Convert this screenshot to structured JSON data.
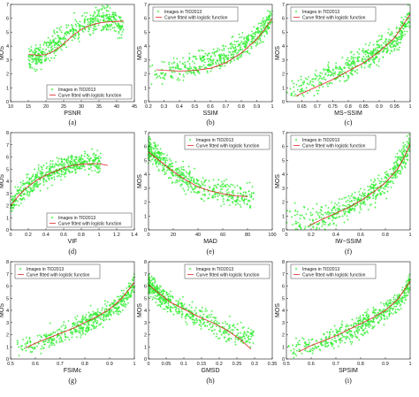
{
  "colors": {
    "scatter": "#33ee33",
    "curve": "#dd2222",
    "axis": "#111111"
  },
  "legend": {
    "scatter": "Images in TID2013",
    "curve": "Curve fitted with logistic function"
  },
  "chart_data": [
    {
      "type": "scatter",
      "caption": "(a)",
      "xlabel": "PSNR",
      "ylabel": "MOS",
      "xlim": [
        10,
        45
      ],
      "ylim": [
        0,
        7
      ],
      "xticks": [
        "10",
        "15",
        "20",
        "25",
        "30",
        "35",
        "40",
        "45"
      ],
      "yticks": [
        "0",
        "1",
        "2",
        "3",
        "4",
        "5",
        "6",
        "7"
      ],
      "legend_position": "bottom-right",
      "series": [
        {
          "name": "Images in TID2013",
          "x": [
            18,
            20,
            22,
            24,
            26,
            28,
            30,
            32,
            34,
            36,
            38,
            40,
            22,
            25,
            28,
            31
          ],
          "y": [
            3.1,
            3.6,
            4.0,
            4.5,
            5.0,
            5.2,
            5.5,
            5.6,
            5.8,
            5.9,
            6.0,
            6.0,
            2.2,
            3.8,
            4.9,
            5.4
          ]
        },
        {
          "name": "Curve fitted with logistic function",
          "x": [
            15,
            18,
            20,
            22,
            24,
            26,
            28,
            30,
            32,
            34,
            36,
            38,
            40,
            42
          ],
          "y": [
            3.4,
            3.35,
            3.4,
            3.6,
            3.95,
            4.4,
            4.85,
            5.2,
            5.45,
            5.6,
            5.7,
            5.75,
            5.78,
            5.8
          ]
        }
      ]
    },
    {
      "type": "scatter",
      "caption": "(b)",
      "xlabel": "SSIM",
      "ylabel": "MOS",
      "xlim": [
        0.2,
        1.0
      ],
      "ylim": [
        0,
        7
      ],
      "xticks": [
        "0.2",
        "0.3",
        "0.4",
        "0.5",
        "0.6",
        "0.7",
        "0.8",
        "0.9",
        "1"
      ],
      "yticks": [
        "0",
        "1",
        "2",
        "3",
        "4",
        "5",
        "6",
        "7"
      ],
      "legend_position": "top-left",
      "series": [
        {
          "name": "Images in TID2013",
          "x": [
            0.25,
            0.35,
            0.45,
            0.55,
            0.65,
            0.75,
            0.85,
            0.9,
            0.95,
            0.98,
            1.0
          ],
          "y": [
            2.0,
            2.3,
            2.5,
            2.8,
            3.0,
            3.6,
            4.3,
            4.8,
            5.3,
            5.8,
            6.2
          ]
        },
        {
          "name": "Curve fitted with logistic function",
          "x": [
            0.25,
            0.3,
            0.4,
            0.5,
            0.6,
            0.7,
            0.8,
            0.9,
            0.95,
            1.0
          ],
          "y": [
            2.3,
            2.25,
            2.2,
            2.25,
            2.4,
            2.8,
            3.5,
            4.5,
            5.2,
            6.0
          ]
        }
      ]
    },
    {
      "type": "scatter",
      "caption": "(c)",
      "xlabel": "MS−SSIM",
      "ylabel": "MOS",
      "xlim": [
        0.6,
        1.0
      ],
      "ylim": [
        0,
        7
      ],
      "xticks": [
        "0.65",
        "0.7",
        "0.75",
        "0.8",
        "0.85",
        "0.9",
        "0.95",
        "1"
      ],
      "yticks": [
        "0",
        "1",
        "2",
        "3",
        "4",
        "5",
        "6",
        "7"
      ],
      "legend_position": "top-left",
      "series": [
        {
          "name": "Images in TID2013",
          "x": [
            0.65,
            0.7,
            0.75,
            0.8,
            0.85,
            0.9,
            0.95,
            0.98,
            1.0
          ],
          "y": [
            1.0,
            1.5,
            2.0,
            2.5,
            3.0,
            3.7,
            4.5,
            5.3,
            6.2
          ]
        },
        {
          "name": "Curve fitted with logistic function",
          "x": [
            0.63,
            0.7,
            0.75,
            0.8,
            0.85,
            0.9,
            0.95,
            1.0
          ],
          "y": [
            0.4,
            1.1,
            1.6,
            2.2,
            2.8,
            3.6,
            4.6,
            6.3
          ]
        }
      ]
    },
    {
      "type": "scatter",
      "caption": "(d)",
      "xlabel": "VIF",
      "ylabel": "MOS",
      "xlim": [
        0,
        1.4
      ],
      "ylim": [
        0,
        8
      ],
      "xticks": [
        "0",
        "0.2",
        "0.4",
        "0.6",
        "0.8",
        "1",
        "1.2",
        "1.4"
      ],
      "yticks": [
        "0",
        "1",
        "2",
        "3",
        "4",
        "5",
        "6",
        "7",
        "8"
      ],
      "legend_position": "bottom-right",
      "series": [
        {
          "name": "Images in TID2013",
          "x": [
            0.02,
            0.1,
            0.2,
            0.3,
            0.4,
            0.5,
            0.6,
            0.7,
            0.8,
            0.9,
            1.0
          ],
          "y": [
            2.0,
            3.0,
            3.6,
            4.1,
            4.5,
            4.9,
            5.2,
            5.4,
            5.6,
            5.6,
            5.5
          ]
        },
        {
          "name": "Curve fitted with logistic function",
          "x": [
            0,
            0.1,
            0.2,
            0.3,
            0.4,
            0.5,
            0.6,
            0.7,
            0.8,
            0.9,
            1.0,
            1.1
          ],
          "y": [
            2.0,
            2.9,
            3.6,
            4.1,
            4.5,
            4.8,
            5.1,
            5.3,
            5.4,
            5.45,
            5.45,
            5.3
          ]
        }
      ]
    },
    {
      "type": "scatter",
      "caption": "(e)",
      "xlabel": "MAD",
      "ylabel": "MOS",
      "xlim": [
        0,
        100
      ],
      "ylim": [
        0,
        7
      ],
      "xticks": [
        "0",
        "20",
        "40",
        "60",
        "80",
        "100"
      ],
      "yticks": [
        "0",
        "1",
        "2",
        "3",
        "4",
        "5",
        "6",
        "7"
      ],
      "legend_position": "top-right",
      "series": [
        {
          "name": "Images in TID2013",
          "x": [
            2,
            10,
            20,
            30,
            40,
            50,
            60,
            70,
            80
          ],
          "y": [
            5.7,
            5.0,
            4.3,
            3.7,
            3.2,
            2.9,
            2.7,
            2.5,
            2.4
          ]
        },
        {
          "name": "Curve fitted with logistic function",
          "x": [
            0,
            10,
            20,
            30,
            40,
            50,
            60,
            70,
            80
          ],
          "y": [
            5.6,
            4.9,
            4.2,
            3.6,
            3.1,
            2.8,
            2.6,
            2.45,
            2.4
          ]
        }
      ]
    },
    {
      "type": "scatter",
      "caption": "(f)",
      "xlabel": "IW−SSIM",
      "ylabel": "MOS",
      "xlim": [
        0,
        1
      ],
      "ylim": [
        0,
        7
      ],
      "xticks": [
        "0",
        "0.2",
        "0.4",
        "0.6",
        "0.8",
        "1"
      ],
      "yticks": [
        "0",
        "1",
        "2",
        "3",
        "4",
        "5",
        "6",
        "7"
      ],
      "legend_position": "top-left",
      "series": [
        {
          "name": "Images in TID2013",
          "x": [
            0.3,
            0.5,
            0.6,
            0.7,
            0.8,
            0.85,
            0.9,
            0.95,
            1.0
          ],
          "y": [
            0.8,
            1.6,
            2.2,
            2.7,
            3.4,
            3.9,
            4.5,
            5.2,
            6.2
          ]
        },
        {
          "name": "Curve fitted with logistic function",
          "x": [
            0.18,
            0.3,
            0.4,
            0.5,
            0.6,
            0.7,
            0.8,
            0.9,
            0.95,
            1.0
          ],
          "y": [
            0.3,
            0.8,
            1.2,
            1.6,
            2.1,
            2.7,
            3.4,
            4.4,
            5.2,
            6.2
          ]
        }
      ]
    },
    {
      "type": "scatter",
      "caption": "(g)",
      "xlabel": "FSIMc",
      "ylabel": "MOS",
      "xlim": [
        0.5,
        1.0
      ],
      "ylim": [
        0,
        8
      ],
      "xticks": [
        "0.5",
        "0.6",
        "0.7",
        "0.8",
        "0.9",
        "1"
      ],
      "yticks": [
        "0",
        "1",
        "2",
        "3",
        "4",
        "5",
        "6",
        "7",
        "8"
      ],
      "legend_position": "top-left",
      "series": [
        {
          "name": "Images in TID2013",
          "x": [
            0.6,
            0.7,
            0.75,
            0.8,
            0.85,
            0.9,
            0.95,
            0.98,
            1.0
          ],
          "y": [
            1.2,
            2.0,
            2.4,
            2.9,
            3.4,
            4.0,
            4.8,
            5.5,
            6.3
          ]
        },
        {
          "name": "Curve fitted with logistic function",
          "x": [
            0.56,
            0.6,
            0.7,
            0.75,
            0.8,
            0.85,
            0.9,
            0.95,
            1.0
          ],
          "y": [
            0.9,
            1.3,
            2.1,
            2.5,
            3.0,
            3.5,
            4.1,
            5.0,
            6.3
          ]
        }
      ]
    },
    {
      "type": "scatter",
      "caption": "(h)",
      "xlabel": "GMSD",
      "ylabel": "MOS",
      "xlim": [
        0,
        0.35
      ],
      "ylim": [
        0,
        8
      ],
      "xticks": [
        "0",
        "0.05",
        "0.1",
        "0.15",
        "0.2",
        "0.25",
        "0.3",
        "0.35"
      ],
      "yticks": [
        "0",
        "1",
        "2",
        "3",
        "4",
        "5",
        "6",
        "7",
        "8"
      ],
      "legend_position": "top-right",
      "series": [
        {
          "name": "Images in TID2013",
          "x": [
            0.005,
            0.03,
            0.06,
            0.1,
            0.14,
            0.18,
            0.22,
            0.26
          ],
          "y": [
            6.0,
            5.3,
            4.6,
            4.0,
            3.4,
            2.9,
            2.4,
            1.9
          ]
        },
        {
          "name": "Curve fitted with logistic function",
          "x": [
            0,
            0.03,
            0.06,
            0.1,
            0.14,
            0.18,
            0.22,
            0.26,
            0.29
          ],
          "y": [
            6.1,
            5.4,
            4.7,
            4.1,
            3.5,
            3.0,
            2.4,
            1.6,
            0.8
          ]
        }
      ]
    },
    {
      "type": "scatter",
      "caption": "(i)",
      "xlabel": "SPSIM",
      "ylabel": "MOS",
      "xlim": [
        0.5,
        1.0
      ],
      "ylim": [
        0,
        8
      ],
      "xticks": [
        "0.5",
        "0.6",
        "0.7",
        "0.8",
        "0.9",
        "1"
      ],
      "yticks": [
        "0",
        "1",
        "2",
        "3",
        "4",
        "5",
        "6",
        "7",
        "8"
      ],
      "legend_position": "top-left",
      "series": [
        {
          "name": "Images in TID2013",
          "x": [
            0.6,
            0.7,
            0.75,
            0.8,
            0.85,
            0.9,
            0.95,
            0.98,
            1.0
          ],
          "y": [
            1.0,
            1.8,
            2.3,
            2.8,
            3.3,
            3.9,
            4.7,
            5.5,
            6.3
          ]
        },
        {
          "name": "Curve fitted with logistic function",
          "x": [
            0.55,
            0.6,
            0.7,
            0.75,
            0.8,
            0.85,
            0.9,
            0.95,
            1.0
          ],
          "y": [
            0.6,
            1.1,
            1.9,
            2.4,
            2.9,
            3.4,
            4.0,
            4.9,
            6.4
          ]
        }
      ]
    }
  ]
}
